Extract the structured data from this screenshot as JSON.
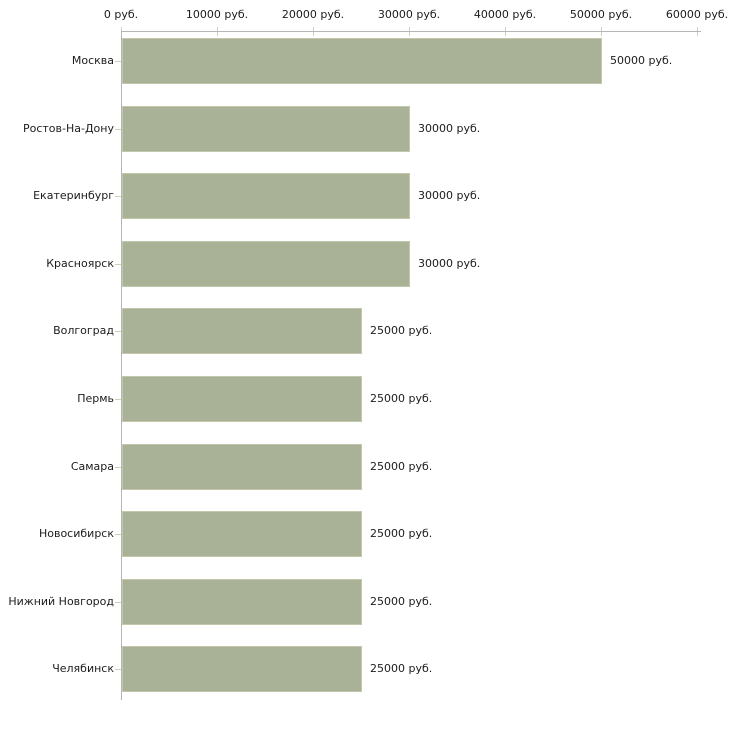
{
  "chart_data": {
    "type": "bar",
    "orientation": "horizontal",
    "title": "",
    "xlabel": "",
    "ylabel": "",
    "unit": "руб.",
    "categories": [
      "Москва",
      "Ростов-На-Дону",
      "Екатеринбург",
      "Красноярск",
      "Волгоград",
      "Пермь",
      "Самара",
      "Новосибирск",
      "Нижний Новгород",
      "Челябинск"
    ],
    "values": [
      50000,
      30000,
      30000,
      30000,
      25000,
      25000,
      25000,
      25000,
      25000,
      25000
    ],
    "value_labels": [
      "50000 руб.",
      "30000 руб.",
      "30000 руб.",
      "30000 руб.",
      "25000 руб.",
      "25000 руб.",
      "25000 руб.",
      "25000 руб.",
      "25000 руб.",
      "25000 руб."
    ],
    "x_axis": {
      "position": "top",
      "tick_values": [
        0,
        10000,
        20000,
        30000,
        40000,
        50000,
        60000
      ],
      "tick_labels": [
        "0 руб.",
        "10000 руб.",
        "20000 руб.",
        "30000 руб.",
        "40000 руб.",
        "50000 руб.",
        "60000 руб."
      ]
    },
    "xlim": [
      0,
      60000
    ],
    "grid": false,
    "legend": false,
    "colors": {
      "bar": "#a9b296",
      "bar_border": "#c2c8ac",
      "axis_line": "#b5b5b5",
      "tick": "#cdd2b4",
      "text": "#1c1c1c",
      "background": "#ffffff"
    }
  }
}
